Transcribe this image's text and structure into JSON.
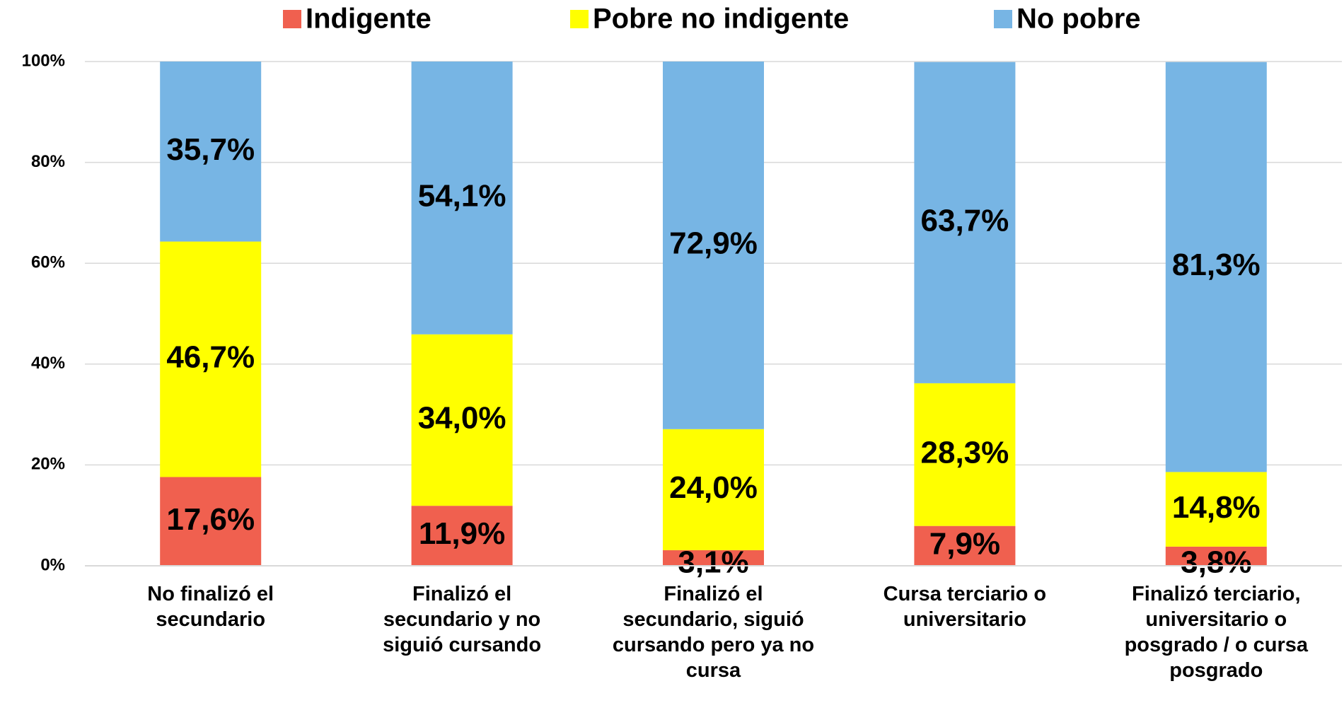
{
  "chart_data": {
    "type": "stacked_bar",
    "categories": [
      "No finalizó el secundario",
      "Finalizó el secundario y no siguió cursando",
      "Finalizó el secundario, siguió cursando pero ya no cursa",
      "Cursa terciario o universitario",
      "Finalizó terciario, universitario o posgrado / o cursa posgrado"
    ],
    "series": [
      {
        "name": "Indigente",
        "color": "#f0604f",
        "values": [
          17.6,
          11.9,
          3.1,
          7.9,
          3.8
        ],
        "value_labels": [
          "17,6%",
          "11,9%",
          "3,1%",
          "7,9%",
          "3,8%"
        ]
      },
      {
        "name": "Pobre no indigente",
        "color": "#ffff00",
        "values": [
          46.7,
          34.0,
          24.0,
          28.3,
          14.8
        ],
        "value_labels": [
          "46,7%",
          "34,0%",
          "24,0%",
          "28,3%",
          "14,8%"
        ]
      },
      {
        "name": "No pobre",
        "color": "#77b5e4",
        "values": [
          35.7,
          54.1,
          72.9,
          63.7,
          81.3
        ],
        "value_labels": [
          "35,7%",
          "54,1%",
          "72,9%",
          "63,7%",
          "81,3%"
        ]
      }
    ],
    "ylim": [
      0,
      100
    ],
    "yticks": [
      {
        "value": 0,
        "label": "0%"
      },
      {
        "value": 20,
        "label": "20%"
      },
      {
        "value": 40,
        "label": "40%"
      },
      {
        "value": 60,
        "label": "60%"
      },
      {
        "value": 80,
        "label": "80%"
      },
      {
        "value": 100,
        "label": "100%"
      }
    ],
    "grid": true,
    "legend": "top"
  }
}
